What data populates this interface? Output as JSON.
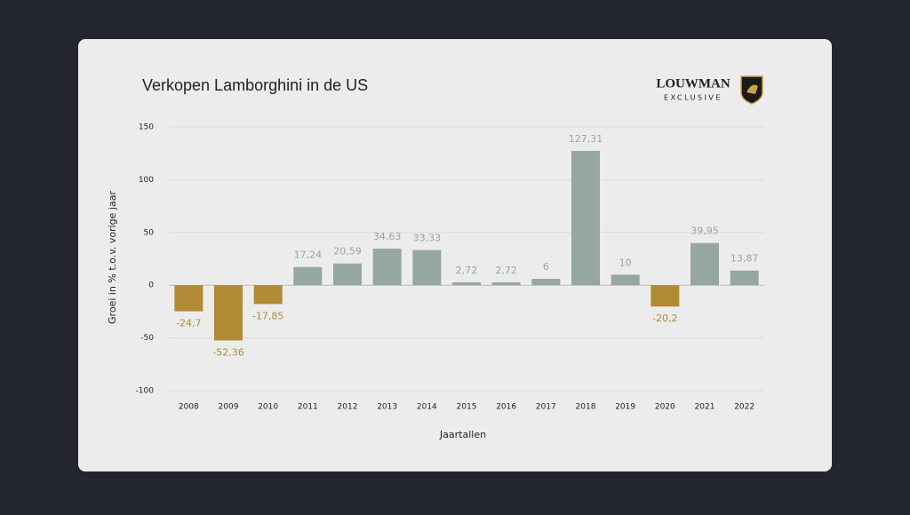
{
  "header": {
    "brand": "LOUWMAN",
    "sub_brand": "EXCLUSIVE"
  },
  "chart_data": {
    "type": "bar",
    "title": "Verkopen Lamborghini in de US",
    "x_label": "Jaartallen",
    "y_label": "Groei in % t.o.v. vorige jaar",
    "categories": [
      "2008",
      "2009",
      "2010",
      "2011",
      "2012",
      "2013",
      "2014",
      "2015",
      "2016",
      "2017",
      "2018",
      "2019",
      "2020",
      "2021",
      "2022"
    ],
    "values": [
      -24.7,
      -52.36,
      -17.85,
      17.24,
      20.59,
      34.63,
      33.33,
      2.72,
      2.72,
      6,
      127.31,
      10,
      -20.2,
      39.95,
      13.87
    ],
    "value_labels": [
      "-24,7",
      "-52,36",
      "-17,85",
      "17,24",
      "20,59",
      "34,63",
      "33,33",
      "2,72",
      "2,72",
      "6",
      "127,31",
      "10",
      "-20,2",
      "39,95",
      "13,87"
    ],
    "colors": [
      "#b08a35",
      "#b08a35",
      "#b08a35",
      "#96a6a3",
      "#96a6a3",
      "#96a6a3",
      "#96a6a3",
      "#96a6a3",
      "#96a6a3",
      "#96a6a3",
      "#96a6a3",
      "#96a6a3",
      "#b08a35",
      "#96a6a3",
      "#96a6a3"
    ],
    "ylim": [
      -100,
      150
    ],
    "yticks": [
      -100,
      -50,
      0,
      50,
      100,
      150
    ],
    "grid": true
  }
}
